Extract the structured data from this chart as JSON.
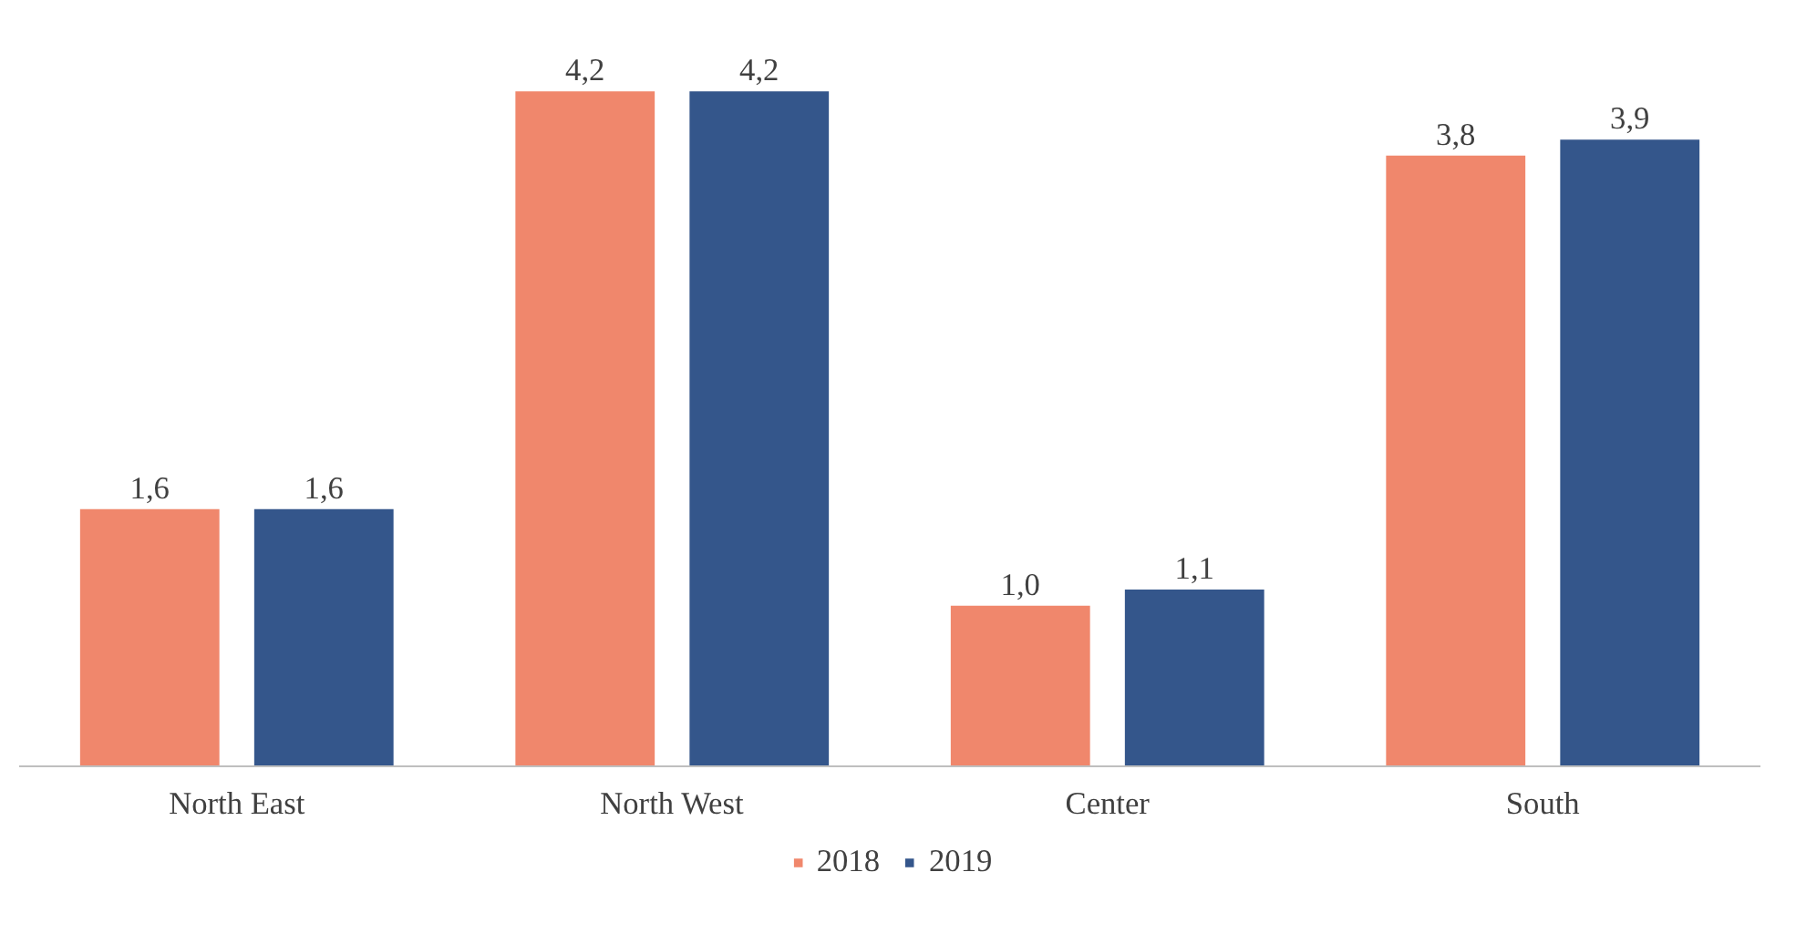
{
  "chart_data": {
    "type": "bar",
    "categories": [
      "North East",
      "North West",
      "Center",
      "South"
    ],
    "series": [
      {
        "name": "2018",
        "color": "#f0876c",
        "values": [
          1.6,
          4.2,
          1.0,
          3.8
        ],
        "value_labels": [
          "1,6",
          "4,2",
          "1,0",
          "3,8"
        ]
      },
      {
        "name": "2019",
        "color": "#34568b",
        "values": [
          1.6,
          4.2,
          1.1,
          3.9
        ],
        "value_labels": [
          "1,6",
          "4,2",
          "1,1",
          "3,9"
        ]
      }
    ],
    "legend": "bottom"
  }
}
